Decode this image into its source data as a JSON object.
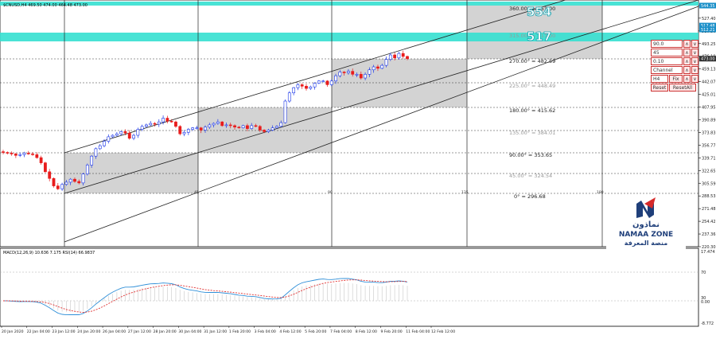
{
  "window": {
    "symbol_info": "$CNUSD,H4  469.50 474.00 464.48 473.00"
  },
  "price_axis": {
    "ticks": [
      "544.35",
      "527.40",
      "510.30",
      "493.25",
      "476.19",
      "459.13",
      "442.07",
      "425.01",
      "407.95",
      "390.89",
      "373.83",
      "356.77",
      "339.71",
      "322.65",
      "305.59",
      "288.53",
      "271.48",
      "254.42",
      "237.36",
      "220.30"
    ],
    "badges": [
      {
        "text": "544.35",
        "color": "#1a8fc8"
      },
      {
        "text": "517.48",
        "color": "#1a8fc8"
      },
      {
        "text": "512.21",
        "color": "#1a8fc8"
      },
      {
        "text": "473.00",
        "color": "#333333"
      }
    ]
  },
  "time_axis": {
    "labels": [
      "20 Jan 2020",
      "22 Jan 04:00",
      "23 Jan 12:00",
      "24 Jan 20:00",
      "26 Jan 04:00",
      "27 Jan 12:00",
      "28 Jan 20:00",
      "30 Jan 04:00",
      "31 Jan 12:00",
      "1 Feb 20:00",
      "3 Feb 04:00",
      "4 Feb 12:00",
      "5 Feb 20:00",
      "7 Feb 04:00",
      "8 Feb 12:00",
      "9 Feb 20:00",
      "11 Feb 04:00",
      "12 Feb 12:00"
    ]
  },
  "gann_levels": [
    {
      "label": "360.00° = 551.00",
      "style": "dark"
    },
    {
      "label": "315.00° = 517.00",
      "style": "light"
    },
    {
      "label": "270.00° = 482.59",
      "style": "dark"
    },
    {
      "label": "225.00° = 448.49",
      "style": "light"
    },
    {
      "label": "180.00° = 415.62",
      "style": "dark"
    },
    {
      "label": "135.00° = 384.01",
      "style": "light"
    },
    {
      "label": "90.00° = 353.65",
      "style": "dark"
    },
    {
      "label": "45.00° = 324.54",
      "style": "light"
    },
    {
      "label": "0° = 296.68",
      "style": "dark"
    }
  ],
  "big_levels": [
    {
      "text": "554",
      "color": "#1aa3b0"
    },
    {
      "text": "517",
      "color": "#1aa3b0"
    }
  ],
  "bottom_marks": [
    "45",
    "90",
    "135",
    "180"
  ],
  "indicator": {
    "title": "MACD(12,26,9) 10.636 7.175  RSI(14) 66.9837",
    "ticks": [
      "17.474",
      "70",
      "30",
      "0.00",
      "-8.772"
    ]
  },
  "control_panel": {
    "angle": "90.0",
    "step": "45",
    "scale": "0.10",
    "mode": "Channel",
    "timeframe": "H4",
    "fix_label": "Fix",
    "reset_label": "Reset",
    "reset_all_label": "ResetAll",
    "up_label": "∧",
    "down_label": "∨"
  },
  "logo": {
    "arabic_name": "نماذون",
    "latin_name": "NAMAA ZONE",
    "tagline": "منصة المعرفة"
  },
  "colors": {
    "bull": "#1c37e8",
    "bear": "#e81c1c",
    "band": "#35e0d0",
    "box": "#d3d3d3",
    "macd": "#2f8fd8",
    "signal": "#e03030"
  },
  "price_series": [
    347,
    346,
    345,
    343,
    344,
    346,
    345,
    344,
    340,
    333,
    321,
    312,
    302,
    298,
    304,
    307,
    311,
    308,
    306,
    318,
    330,
    342,
    352,
    356,
    362,
    368,
    370,
    372,
    375,
    373,
    366,
    370,
    378,
    382,
    384,
    386,
    385,
    388,
    393,
    389,
    388,
    382,
    372,
    374,
    378,
    380,
    380,
    377,
    381,
    384,
    386,
    388,
    383,
    384,
    383,
    381,
    380,
    383,
    379,
    383,
    382,
    377,
    375,
    377,
    380,
    382,
    387,
    416,
    427,
    434,
    438,
    436,
    433,
    435,
    440,
    443,
    443,
    438,
    443,
    450,
    455,
    454,
    456,
    452,
    452,
    447,
    452,
    458,
    462,
    460,
    464,
    472,
    478,
    474,
    480,
    476,
    473
  ]
}
